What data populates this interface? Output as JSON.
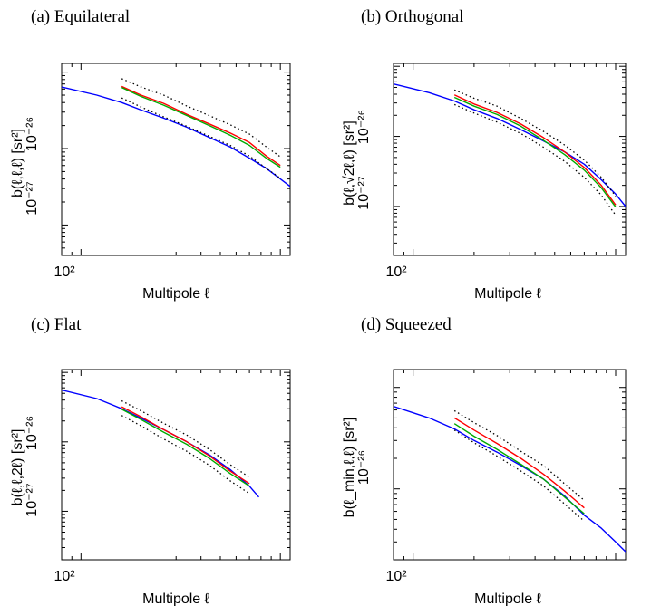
{
  "chart_data": [
    {
      "type": "line",
      "title": "(a) Equilateral",
      "xlabel": "Multipole ℓ",
      "ylabel": "b(ℓ,ℓ,ℓ) [sr²]",
      "xscale": "log",
      "yscale": "log",
      "x_tick_labels": [
        "10²"
      ],
      "y_tick_labels": [
        "10⁻²⁶",
        "10⁻²⁷"
      ],
      "xlim": [
        80,
        1120
      ],
      "ylim": [
        4e-28,
        1.3e-25
      ],
      "grid": false,
      "series": [
        {
          "color": "#0000ff",
          "style": "solid",
          "x": [
            80,
            120,
            160,
            200,
            260,
            340,
            440,
            560,
            700,
            850,
            1000,
            1120
          ],
          "y": [
            6.4e-26,
            5e-26,
            4e-26,
            3.2e-26,
            2.5e-26,
            1.9e-26,
            1.4e-26,
            1.05e-26,
            7.5e-27,
            5.5e-27,
            4e-27,
            3.2e-27
          ]
        },
        {
          "color": "#ff0000",
          "style": "solid",
          "x": [
            160,
            200,
            260,
            340,
            440,
            560,
            700,
            850,
            1000
          ],
          "y": [
            6.5e-26,
            5e-26,
            3.9e-26,
            2.8e-26,
            2.1e-26,
            1.6e-26,
            1.2e-26,
            8e-27,
            6e-27
          ]
        },
        {
          "color": "#00aa00",
          "style": "solid",
          "x": [
            160,
            200,
            260,
            340,
            440,
            560,
            700,
            850,
            1000
          ],
          "y": [
            6.3e-26,
            4.8e-26,
            3.7e-26,
            2.7e-26,
            2e-26,
            1.5e-26,
            1.1e-26,
            7.5e-27,
            5.7e-27
          ]
        },
        {
          "color": "#000000",
          "style": "dotted",
          "x": [
            160,
            200,
            260,
            340,
            440,
            560,
            700,
            850,
            1000
          ],
          "y": [
            8.2e-26,
            6.4e-26,
            5e-26,
            3.6e-26,
            2.7e-26,
            2.05e-26,
            1.55e-26,
            1.05e-26,
            7.8e-27
          ]
        },
        {
          "color": "#000000",
          "style": "dotted",
          "x": [
            160,
            200,
            260,
            340,
            440,
            560,
            700,
            850,
            1000
          ],
          "y": [
            4.6e-26,
            3.5e-26,
            2.6e-26,
            1.95e-26,
            1.45e-26,
            1.1e-26,
            8e-27,
            5.5e-27,
            4.1e-27
          ]
        }
      ]
    },
    {
      "type": "line",
      "title": "(b) Orthogonal",
      "xlabel": "Multipole ℓ",
      "ylabel": "b(ℓ,√2ℓ,ℓ) [sr²]",
      "xscale": "log",
      "yscale": "log",
      "x_tick_labels": [
        "10²"
      ],
      "y_tick_labels": [
        "10⁻²⁶",
        "10⁻²⁷"
      ],
      "xlim": [
        80,
        1120
      ],
      "ylim": [
        2e-28,
        1.1e-25
      ],
      "grid": false,
      "series": [
        {
          "color": "#0000ff",
          "style": "solid",
          "x": [
            80,
            120,
            160,
            200,
            260,
            340,
            440,
            560,
            700,
            850,
            1000,
            1120
          ],
          "y": [
            5.6e-26,
            4.2e-26,
            3.2e-26,
            2.4e-26,
            1.8e-26,
            1.25e-26,
            8.6e-27,
            6e-27,
            4e-27,
            2.4e-27,
            1.5e-27,
            1e-27
          ]
        },
        {
          "color": "#ff0000",
          "style": "solid",
          "x": [
            160,
            200,
            260,
            340,
            440,
            560,
            700,
            850,
            1000
          ],
          "y": [
            3.9e-26,
            2.9e-26,
            2.2e-26,
            1.5e-26,
            9.6e-27,
            6e-27,
            3.6e-27,
            2e-27,
            1.05e-27
          ]
        },
        {
          "color": "#00aa00",
          "style": "solid",
          "x": [
            160,
            200,
            260,
            340,
            440,
            560,
            700,
            850,
            1000
          ],
          "y": [
            3.6e-26,
            2.7e-26,
            2.05e-26,
            1.4e-26,
            8.8e-27,
            5.5e-27,
            3.3e-27,
            1.85e-27,
            9.8e-28
          ]
        },
        {
          "color": "#000000",
          "style": "dotted",
          "x": [
            160,
            200,
            260,
            340,
            440,
            560,
            700,
            850,
            1000
          ],
          "y": [
            4.6e-26,
            3.5e-26,
            2.7e-26,
            1.8e-26,
            1.18e-26,
            7.5e-27,
            4.6e-27,
            2.6e-27,
            1.4e-27
          ]
        },
        {
          "color": "#000000",
          "style": "dotted",
          "x": [
            160,
            200,
            260,
            340,
            440,
            560,
            700,
            850,
            1000
          ],
          "y": [
            2.85e-26,
            2.15e-26,
            1.6e-26,
            1.1e-26,
            7e-27,
            4.4e-27,
            2.6e-27,
            1.45e-27,
            7.5e-28
          ]
        }
      ]
    },
    {
      "type": "line",
      "title": "(c) Flat",
      "xlabel": "Multipole ℓ",
      "ylabel": "b(ℓ,ℓ,2ℓ) [sr²]",
      "xscale": "log",
      "yscale": "log",
      "x_tick_labels": [
        "10²"
      ],
      "y_tick_labels": [
        "10⁻²⁶",
        "10⁻²⁷"
      ],
      "xlim": [
        80,
        1120
      ],
      "ylim": [
        2e-28,
        1.1e-25
      ],
      "grid": false,
      "series": [
        {
          "color": "#0000ff",
          "style": "solid",
          "x": [
            80,
            120,
            160,
            200,
            260,
            340,
            440,
            560,
            700,
            780
          ],
          "y": [
            5.6e-26,
            4.2e-26,
            3e-26,
            2.2e-26,
            1.5e-26,
            1e-26,
            6.5e-27,
            4e-27,
            2.3e-27,
            1.6e-27
          ]
        },
        {
          "color": "#ff0000",
          "style": "solid",
          "x": [
            160,
            200,
            260,
            340,
            440,
            560,
            700
          ],
          "y": [
            3.2e-26,
            2.3e-26,
            1.5e-26,
            1e-26,
            6.3e-27,
            3.8e-27,
            2.5e-27
          ]
        },
        {
          "color": "#00aa00",
          "style": "solid",
          "x": [
            160,
            200,
            260,
            340,
            440,
            560,
            700
          ],
          "y": [
            2.95e-26,
            2.1e-26,
            1.38e-26,
            9.2e-27,
            5.8e-27,
            3.5e-27,
            2.3e-27
          ]
        },
        {
          "color": "#000000",
          "style": "dotted",
          "x": [
            160,
            200,
            260,
            340,
            440,
            560,
            700
          ],
          "y": [
            3.9e-26,
            2.8e-26,
            1.85e-26,
            1.25e-26,
            7.8e-27,
            4.7e-27,
            3.1e-27
          ]
        },
        {
          "color": "#000000",
          "style": "dotted",
          "x": [
            160,
            200,
            260,
            340,
            440,
            560,
            700
          ],
          "y": [
            2.4e-26,
            1.7e-26,
            1.1e-26,
            7.3e-27,
            4.6e-27,
            2.75e-27,
            1.8e-27
          ]
        }
      ]
    },
    {
      "type": "line",
      "title": "(d) Squeezed",
      "xlabel": "Multipole ℓ",
      "ylabel": "b(ℓ_min,ℓ,ℓ) [sr²]",
      "xscale": "log",
      "yscale": "log",
      "x_tick_labels": [
        "10²"
      ],
      "y_tick_labels": [
        "10⁻²⁶"
      ],
      "xlim": [
        80,
        1120
      ],
      "ylim": [
        2e-27,
        1.5e-25
      ],
      "grid": false,
      "series": [
        {
          "color": "#0000ff",
          "style": "solid",
          "x": [
            80,
            120,
            160,
            200,
            260,
            340,
            440,
            560,
            700,
            850,
            1000,
            1120
          ],
          "y": [
            6.5e-26,
            5e-26,
            3.9e-26,
            3e-26,
            2.3e-26,
            1.7e-26,
            1.25e-26,
            8.5e-27,
            5.5e-27,
            4.1e-27,
            3e-27,
            2.4e-27
          ]
        },
        {
          "color": "#ff0000",
          "style": "solid",
          "x": [
            160,
            200,
            260,
            340,
            440,
            560,
            700
          ],
          "y": [
            5e-26,
            3.8e-26,
            2.8e-26,
            2e-26,
            1.4e-26,
            9.5e-27,
            6.5e-27
          ]
        },
        {
          "color": "#00aa00",
          "style": "solid",
          "x": [
            160,
            200,
            260,
            340,
            440,
            560,
            700
          ],
          "y": [
            4.4e-26,
            3.3e-26,
            2.45e-26,
            1.75e-26,
            1.25e-26,
            8.3e-27,
            5.7e-27
          ]
        },
        {
          "color": "#000000",
          "style": "dotted",
          "x": [
            160,
            200,
            260,
            340,
            440,
            560,
            700
          ],
          "y": [
            5.9e-26,
            4.5e-26,
            3.35e-26,
            2.35e-26,
            1.7e-26,
            1.12e-26,
            7.7e-27
          ]
        },
        {
          "color": "#000000",
          "style": "dotted",
          "x": [
            160,
            200,
            260,
            340,
            440,
            560,
            700
          ],
          "y": [
            3.8e-26,
            2.85e-26,
            2.1e-26,
            1.5e-26,
            1.07e-26,
            7.1e-27,
            4.8e-27
          ]
        }
      ]
    }
  ]
}
